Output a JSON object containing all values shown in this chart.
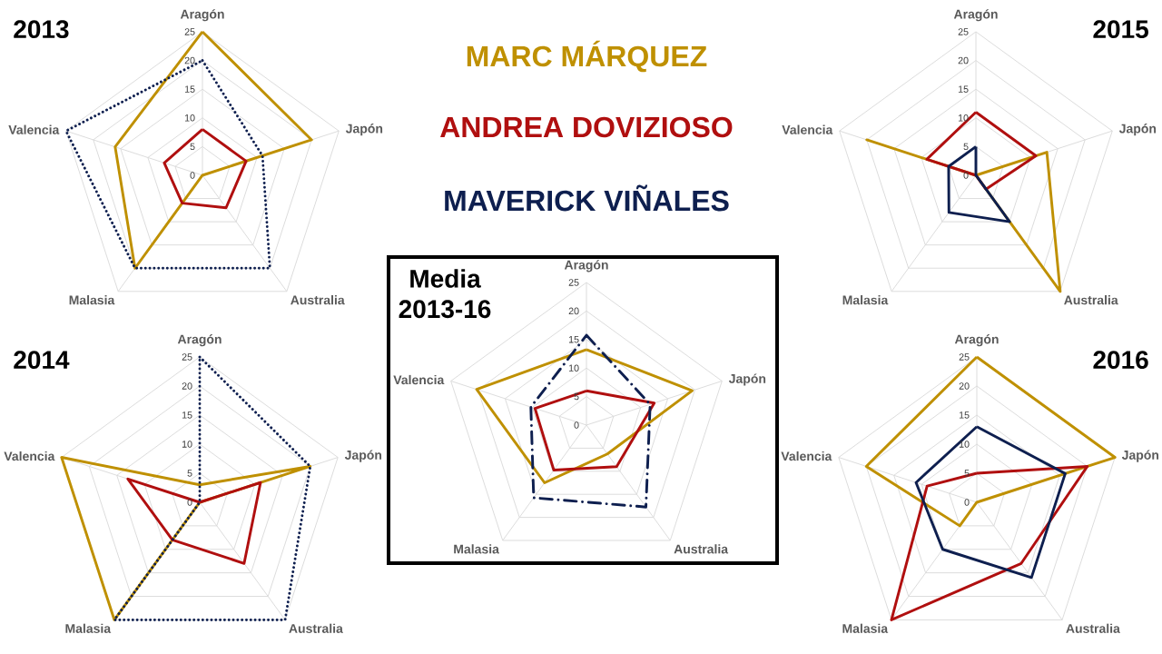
{
  "chart_data": [
    {
      "type": "radar",
      "title": "2013",
      "categories": [
        "Aragón",
        "Japón",
        "Australia",
        "Malasia",
        "Valencia"
      ],
      "ylim": [
        0,
        25
      ],
      "yticks": [
        0,
        5,
        10,
        15,
        20,
        25
      ],
      "grid": true,
      "series": [
        {
          "color": "#bf9000",
          "values": [
            25,
            20,
            0,
            20,
            16
          ]
        },
        {
          "color": "#b00f0f",
          "values": [
            8,
            8,
            7,
            6,
            7
          ]
        },
        {
          "color": "#0e1f4f",
          "values": [
            20,
            11,
            20,
            20,
            25
          ],
          "line_style": "dotted"
        }
      ]
    },
    {
      "type": "radar",
      "title": "2015",
      "categories": [
        "Aragón",
        "Japón",
        "Australia",
        "Malasia",
        "Valencia"
      ],
      "ylim": [
        0,
        25
      ],
      "yticks": [
        0,
        5,
        10,
        15,
        20,
        25
      ],
      "grid": true,
      "series": [
        {
          "color": "#bf9000",
          "values": [
            0,
            13,
            25,
            0,
            20
          ]
        },
        {
          "color": "#b00f0f",
          "values": [
            11,
            11,
            3,
            0,
            9
          ]
        },
        {
          "color": "#0e1f4f",
          "values": [
            5,
            0,
            10,
            8,
            5
          ]
        }
      ]
    },
    {
      "type": "radar",
      "title": "Media 2013-16",
      "categories": [
        "Aragón",
        "Japón",
        "Australia",
        "Malasia",
        "Valencia"
      ],
      "ylim": [
        0,
        25
      ],
      "yticks": [
        0,
        5,
        10,
        15,
        20,
        25
      ],
      "grid": true,
      "legend": "top",
      "series": [
        {
          "name": "MARC MÁRQUEZ",
          "color": "#bf9000",
          "values": [
            13.25,
            19.5,
            6.25,
            12.5,
            20.25
          ]
        },
        {
          "name": "ANDREA DOVIZIOSO",
          "color": "#b00f0f",
          "values": [
            6,
            12.5,
            9,
            9.75,
            9.5
          ]
        },
        {
          "name": "MAVERICK VIÑALES",
          "color": "#0e1f4f",
          "values": [
            15.75,
            11.75,
            17.75,
            15.75,
            10.25
          ],
          "line_style": "dashdot"
        }
      ]
    },
    {
      "type": "radar",
      "title": "2014",
      "categories": [
        "Aragón",
        "Japón",
        "Australia",
        "Malasia",
        "Valencia"
      ],
      "ylim": [
        0,
        25
      ],
      "yticks": [
        0,
        5,
        10,
        15,
        20,
        25
      ],
      "grid": true,
      "series": [
        {
          "color": "#bf9000",
          "values": [
            3,
            20,
            0,
            25,
            25
          ]
        },
        {
          "color": "#b00f0f",
          "values": [
            0,
            11,
            13,
            8,
            13
          ]
        },
        {
          "color": "#0e1f4f",
          "values": [
            25,
            20,
            25,
            25,
            0
          ],
          "line_style": "dotted"
        }
      ]
    },
    {
      "type": "radar",
      "title": "2016",
      "categories": [
        "Aragón",
        "Japón",
        "Australia",
        "Malasia",
        "Valencia"
      ],
      "ylim": [
        0,
        25
      ],
      "yticks": [
        0,
        5,
        10,
        15,
        20,
        25
      ],
      "grid": true,
      "series": [
        {
          "color": "#bf9000",
          "values": [
            25,
            25,
            0,
            5,
            20
          ]
        },
        {
          "color": "#b00f0f",
          "values": [
            5,
            20,
            13,
            25,
            9
          ]
        },
        {
          "color": "#0e1f4f",
          "values": [
            13,
            16,
            16,
            10,
            11
          ]
        }
      ]
    }
  ]
}
